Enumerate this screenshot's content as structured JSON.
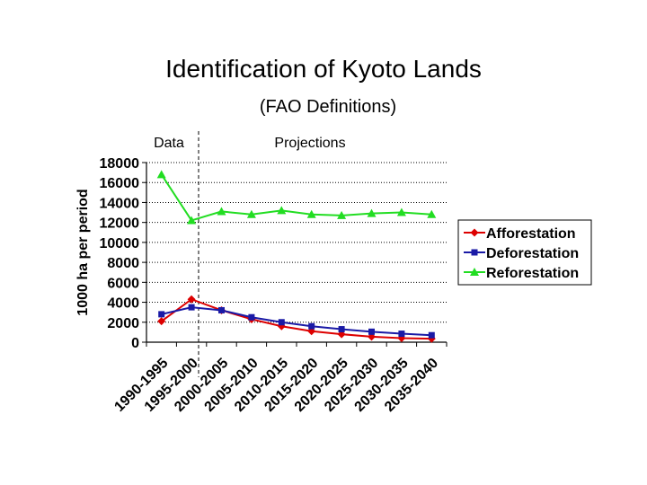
{
  "chart_data": {
    "type": "line",
    "title": "Identification of Kyoto Lands",
    "subtitle": "(FAO Definitions)",
    "ylabel": "1000 ha per period",
    "xlabel": "",
    "categories": [
      "1990-1995",
      "1995-2000",
      "2000-2005",
      "2005-2010",
      "2010-2015",
      "2015-2020",
      "2020-2025",
      "2025-2030",
      "2030-2035",
      "2035-2040"
    ],
    "ylim": [
      0,
      18000
    ],
    "yticks": [
      0,
      2000,
      4000,
      6000,
      8000,
      10000,
      12000,
      14000,
      16000,
      18000
    ],
    "ytick_labels": [
      "0",
      "2000",
      "4000",
      "6000",
      "8000",
      "10000",
      "12000",
      "14000",
      "16000",
      "18000"
    ],
    "grid": "horizontal-dotted",
    "legend_position": "right",
    "annotations": {
      "left": "Data",
      "right": "Projections"
    },
    "series": [
      {
        "name": "Afforestation",
        "color": "#dd0000",
        "marker": "diamond",
        "values": [
          2100,
          4300,
          3200,
          2300,
          1600,
          1100,
          800,
          550,
          400,
          350
        ]
      },
      {
        "name": "Deforestation",
        "color": "#1a1aa6",
        "marker": "square",
        "values": [
          2800,
          3500,
          3200,
          2500,
          2000,
          1600,
          1300,
          1050,
          850,
          700
        ]
      },
      {
        "name": "Reforestation",
        "color": "#22dd22",
        "marker": "triangle",
        "values": [
          16800,
          12200,
          13100,
          12800,
          13200,
          12800,
          12700,
          12900,
          13000,
          12800
        ]
      }
    ]
  }
}
